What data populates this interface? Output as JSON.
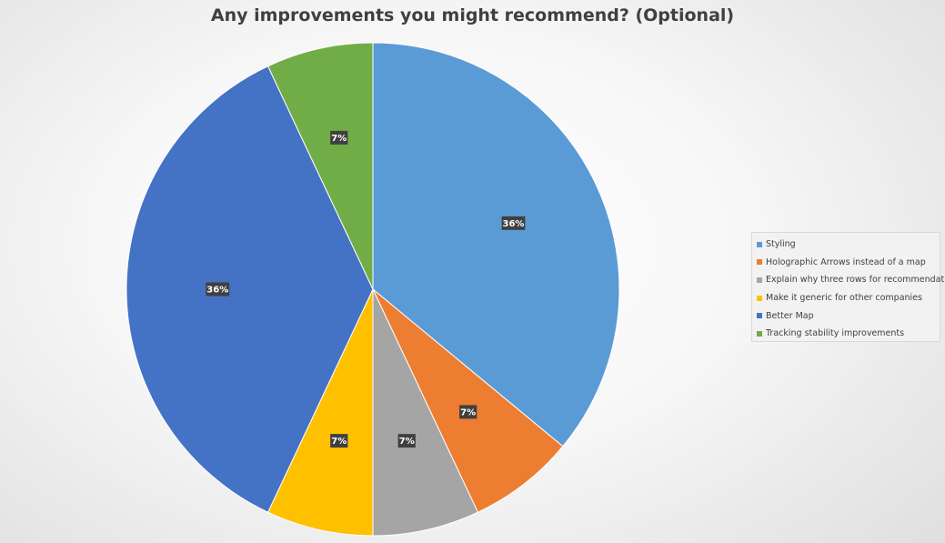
{
  "chart_data": {
    "type": "pie",
    "title": "Any improvements you might recommend? (Optional)",
    "categories": [
      "Styling",
      "Holographic Arrows instead of a map",
      "Explain why three rows for recommendation",
      "Make it generic for other companies",
      "Better Map",
      "Tracking stability improvements"
    ],
    "values": [
      36,
      7,
      7,
      7,
      36,
      7
    ],
    "data_labels": [
      "36%",
      "7%",
      "7%",
      "7%",
      "36%",
      "7%"
    ],
    "colors": [
      "#5b9bd5",
      "#ed7d31",
      "#a5a5a5",
      "#ffc000",
      "#4472c4",
      "#70ad47"
    ],
    "legend_position": "right"
  }
}
